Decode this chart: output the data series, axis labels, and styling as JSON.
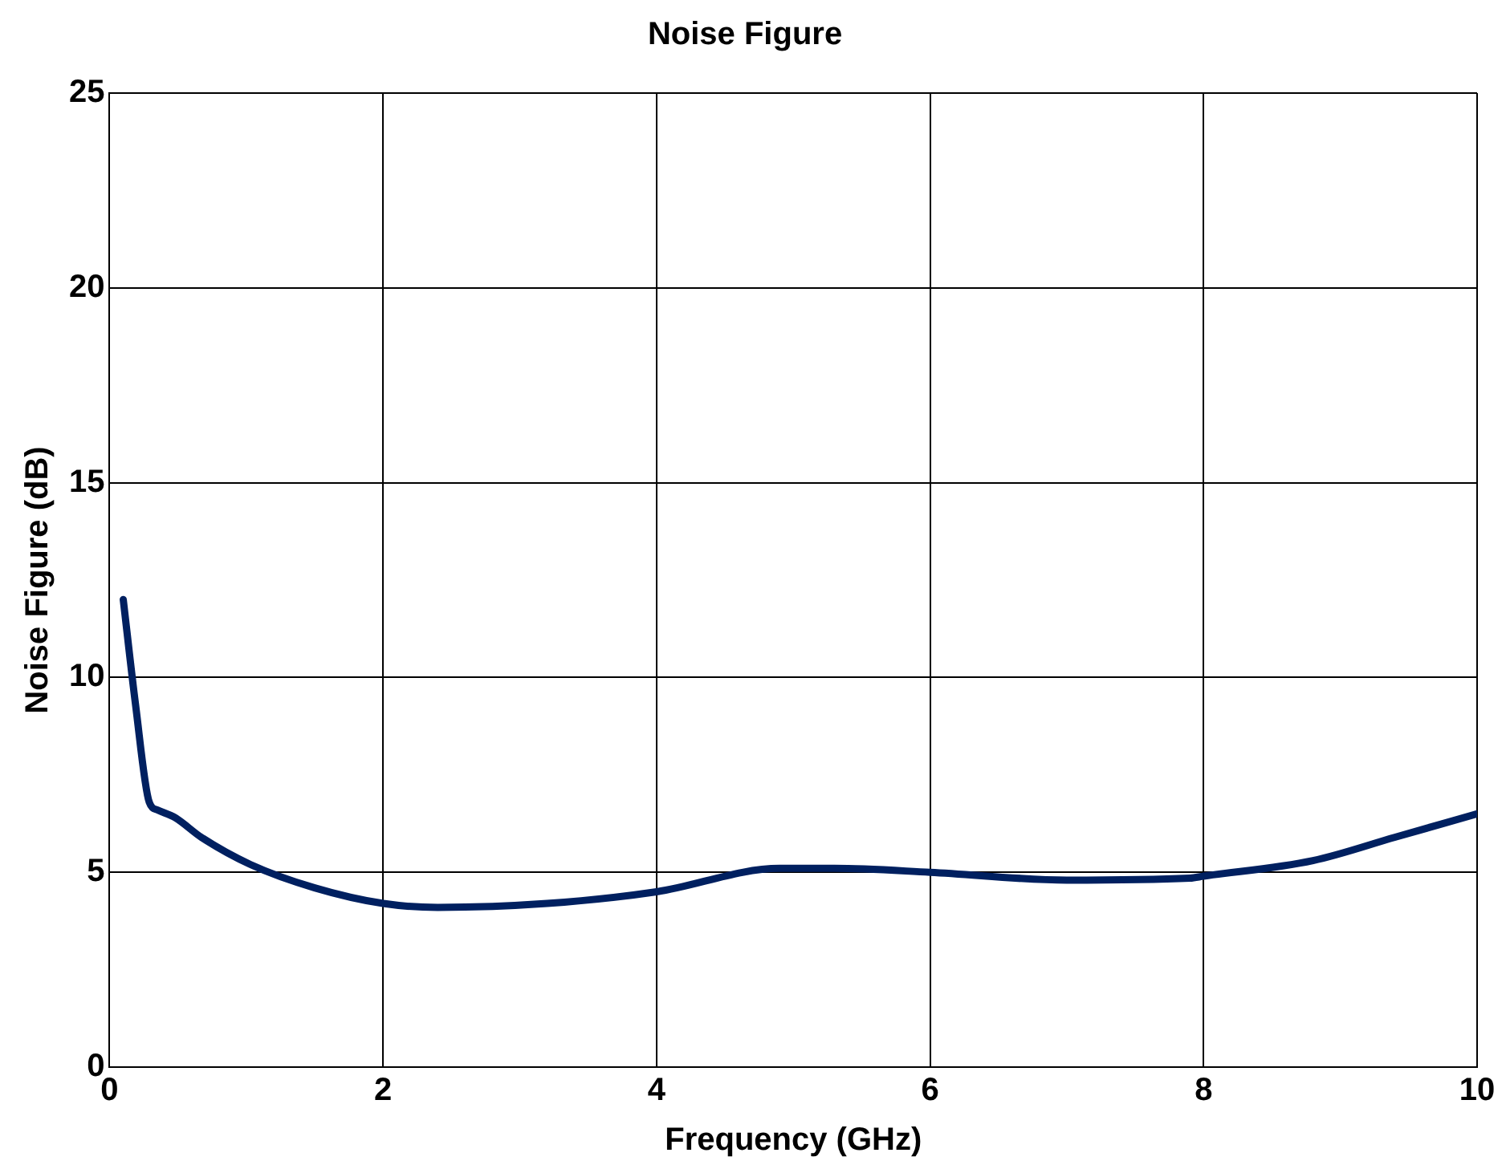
{
  "chart_data": {
    "type": "line",
    "title": "Noise Figure",
    "xlabel": "Frequency (GHz)",
    "ylabel": "Noise Figure (dB)",
    "xlim": [
      0,
      10
    ],
    "xticks": [
      0,
      2,
      4,
      6,
      8,
      10
    ],
    "ylim": [
      0,
      25
    ],
    "yticks": [
      0,
      5,
      10,
      15,
      20,
      25
    ],
    "grid": true,
    "legend": false,
    "series": [
      {
        "color": "#002060",
        "x": [
          0.1,
          0.19,
          0.29,
          0.35,
          0.48,
          0.67,
          1.03,
          1.5,
          2.0,
          2.4,
          3.2,
          4.0,
          4.9,
          5.3,
          6.0,
          7.0,
          7.9,
          8.0,
          8.8,
          9.4,
          10.0
        ],
        "values": [
          12.0,
          9.3,
          6.8,
          6.6,
          6.4,
          5.9,
          5.2,
          4.6,
          4.2,
          4.1,
          4.2,
          4.5,
          5.1,
          5.1,
          5.0,
          4.8,
          4.85,
          4.9,
          5.3,
          5.9,
          6.5
        ]
      }
    ]
  }
}
